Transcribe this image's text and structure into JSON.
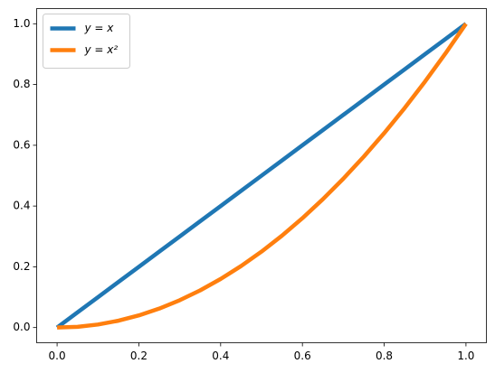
{
  "chart_data": {
    "type": "line",
    "x": [
      0,
      0.05,
      0.1,
      0.15,
      0.2,
      0.25,
      0.3,
      0.35,
      0.4,
      0.45,
      0.5,
      0.55,
      0.6,
      0.65,
      0.7,
      0.75,
      0.8,
      0.85,
      0.9,
      0.95,
      1
    ],
    "series": [
      {
        "name": "y = x",
        "color": "#1f77b4",
        "values": [
          0,
          0.05,
          0.1,
          0.15,
          0.2,
          0.25,
          0.3,
          0.35,
          0.4,
          0.45,
          0.5,
          0.55,
          0.6,
          0.65,
          0.7,
          0.75,
          0.8,
          0.85,
          0.9,
          0.95,
          1
        ]
      },
      {
        "name": "y = x²",
        "color": "#ff7f0e",
        "values": [
          0,
          0.0025,
          0.01,
          0.0225,
          0.04,
          0.0625,
          0.09,
          0.1225,
          0.16,
          0.2025,
          0.25,
          0.3025,
          0.36,
          0.4225,
          0.49,
          0.5625,
          0.64,
          0.7225,
          0.81,
          0.9025,
          1
        ]
      }
    ],
    "xlim": [
      -0.05,
      1.05
    ],
    "ylim": [
      -0.05,
      1.05
    ],
    "xticks": [
      {
        "value": 0,
        "label": "0.0"
      },
      0.2,
      0.4,
      0.6,
      0.8,
      {
        "value": 1,
        "label": "1.0"
      }
    ],
    "yticks": [
      {
        "value": 0,
        "label": "0.0"
      },
      0.2,
      0.4,
      0.6,
      0.8,
      {
        "value": 1,
        "label": "1.0"
      }
    ],
    "grid": false,
    "legend": "upper left"
  }
}
